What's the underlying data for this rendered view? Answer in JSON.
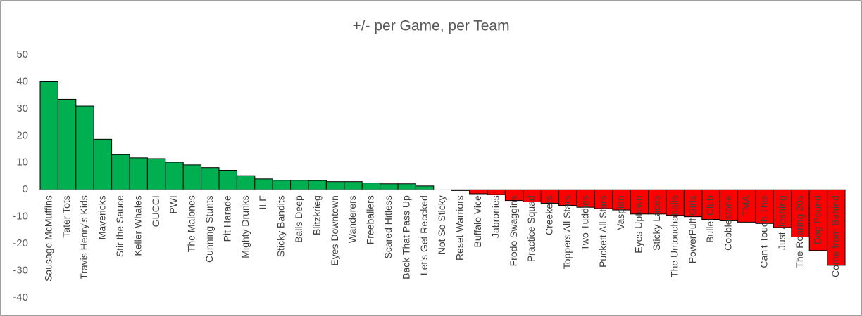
{
  "chart_data": {
    "type": "bar",
    "title": "+/- per Game, per Team",
    "categories": [
      "Sausage McMuffins",
      "Tater Tots",
      "Travis Henry's Kids",
      "Mavericks",
      "Stir the Sauce",
      "Keller Whales",
      "GUCCI",
      "PWI",
      "The Malones",
      "Cunning Stunts",
      "Pit Harade",
      "Mighty Drunks",
      "ILF",
      "Sticky Bandits",
      "Balls Deep",
      "Blitzkrieg",
      "Eyes Downtown",
      "Wanderers",
      "Freeballers",
      "Scared Hitless",
      "Back That Pass Up",
      "Let's Get Reccked",
      "Not So Sticky",
      "Reset Warriors",
      "Buffalo Vice",
      "Jabronies",
      "Frodo Swaggins",
      "Practice Squad",
      "Creekers",
      "Toppers All Stars",
      "Two Tuddies",
      "Puckett All-Stars",
      "Vaspian",
      "Eyes Uptown",
      "Sticky Laces",
      "The Untouchaballs",
      "PowerPuff Girls",
      "Bullet Club",
      "Cobblestone",
      "TMA",
      "Can't Touch This",
      "Just Joshing",
      "The Roaring 20s",
      "Dog Pound",
      "Come from Behind"
    ],
    "values": [
      40,
      33.5,
      31,
      18.7,
      13,
      11.8,
      11.5,
      10.2,
      9.2,
      8.2,
      7.2,
      5.2,
      4,
      3.5,
      3.5,
      3.4,
      3,
      3,
      2.5,
      2.2,
      2.2,
      1.4,
      0,
      -0.3,
      -1.5,
      -1.8,
      -4,
      -4.5,
      -5,
      -5.8,
      -6.5,
      -7,
      -7.5,
      -9,
      -9,
      -9.5,
      -10,
      -11,
      -11.5,
      -12,
      -12.5,
      -14,
      -17.5,
      -22.5,
      -28
    ],
    "positive_color": "#00b050",
    "negative_color": "#ff0000",
    "ylim": [
      -40,
      50
    ],
    "yticks": [
      -40,
      -30,
      -20,
      -10,
      0,
      10,
      20,
      30,
      40,
      50
    ],
    "grid": false
  }
}
